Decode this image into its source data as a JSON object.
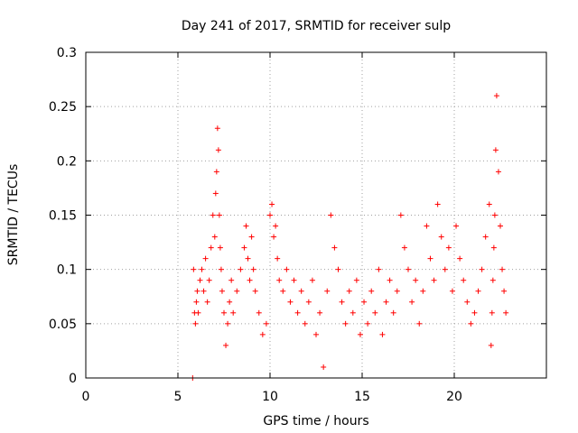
{
  "chart_data": {
    "type": "scatter",
    "title": "Day 241 of 2017, SRMTID for receiver sulp",
    "xlabel": "GPS time / hours",
    "ylabel": "SRMTID / TECUs",
    "xlim": [
      0,
      25
    ],
    "ylim": [
      0,
      0.3
    ],
    "xticks": [
      0,
      5,
      10,
      15,
      20
    ],
    "yticks": [
      0,
      0.05,
      0.1,
      0.15,
      0.2,
      0.25,
      0.3
    ],
    "xtick_labels": [
      "0",
      "5",
      "10",
      "15",
      "20"
    ],
    "ytick_labels": [
      "0",
      "0.05",
      "0.1",
      "0.15",
      "0.2",
      "0.25",
      "0.3"
    ],
    "grid": true,
    "marker": "+",
    "marker_color": "#ff0000",
    "series": [
      {
        "name": "SRMTID",
        "x": [
          5.8,
          5.85,
          5.9,
          5.95,
          6.0,
          6.05,
          6.1,
          6.2,
          6.3,
          6.4,
          6.5,
          6.6,
          6.7,
          6.8,
          6.9,
          7.0,
          7.05,
          7.1,
          7.15,
          7.2,
          7.25,
          7.3,
          7.35,
          7.4,
          7.5,
          7.6,
          7.7,
          7.8,
          7.9,
          8.0,
          8.2,
          8.4,
          8.6,
          8.7,
          8.8,
          8.9,
          9.0,
          9.1,
          9.2,
          9.4,
          9.6,
          9.8,
          10.0,
          10.1,
          10.2,
          10.3,
          10.4,
          10.5,
          10.7,
          10.9,
          11.1,
          11.3,
          11.5,
          11.7,
          11.9,
          12.1,
          12.3,
          12.5,
          12.7,
          12.9,
          13.1,
          13.3,
          13.5,
          13.7,
          13.9,
          14.1,
          14.3,
          14.5,
          14.7,
          14.9,
          15.1,
          15.3,
          15.5,
          15.7,
          15.9,
          16.1,
          16.3,
          16.5,
          16.7,
          16.9,
          17.1,
          17.3,
          17.5,
          17.7,
          17.9,
          18.1,
          18.3,
          18.5,
          18.7,
          18.9,
          19.1,
          19.3,
          19.5,
          19.7,
          19.9,
          20.1,
          20.3,
          20.5,
          20.7,
          20.9,
          21.1,
          21.3,
          21.5,
          21.7,
          21.9,
          22.0,
          22.05,
          22.1,
          22.15,
          22.2,
          22.25,
          22.3,
          22.4,
          22.5,
          22.6,
          22.7,
          22.8
        ],
        "y": [
          0.0,
          0.1,
          0.06,
          0.05,
          0.07,
          0.08,
          0.06,
          0.09,
          0.1,
          0.08,
          0.11,
          0.07,
          0.09,
          0.12,
          0.15,
          0.13,
          0.17,
          0.19,
          0.23,
          0.21,
          0.15,
          0.12,
          0.1,
          0.08,
          0.06,
          0.03,
          0.05,
          0.07,
          0.09,
          0.06,
          0.08,
          0.1,
          0.12,
          0.14,
          0.11,
          0.09,
          0.13,
          0.1,
          0.08,
          0.06,
          0.04,
          0.05,
          0.15,
          0.16,
          0.13,
          0.14,
          0.11,
          0.09,
          0.08,
          0.1,
          0.07,
          0.09,
          0.06,
          0.08,
          0.05,
          0.07,
          0.09,
          0.04,
          0.06,
          0.01,
          0.08,
          0.15,
          0.12,
          0.1,
          0.07,
          0.05,
          0.08,
          0.06,
          0.09,
          0.04,
          0.07,
          0.05,
          0.08,
          0.06,
          0.1,
          0.04,
          0.07,
          0.09,
          0.06,
          0.08,
          0.15,
          0.12,
          0.1,
          0.07,
          0.09,
          0.05,
          0.08,
          0.14,
          0.11,
          0.09,
          0.16,
          0.13,
          0.1,
          0.12,
          0.08,
          0.14,
          0.11,
          0.09,
          0.07,
          0.05,
          0.06,
          0.08,
          0.1,
          0.13,
          0.16,
          0.03,
          0.06,
          0.09,
          0.12,
          0.15,
          0.21,
          0.26,
          0.19,
          0.14,
          0.1,
          0.08,
          0.06
        ]
      }
    ]
  }
}
